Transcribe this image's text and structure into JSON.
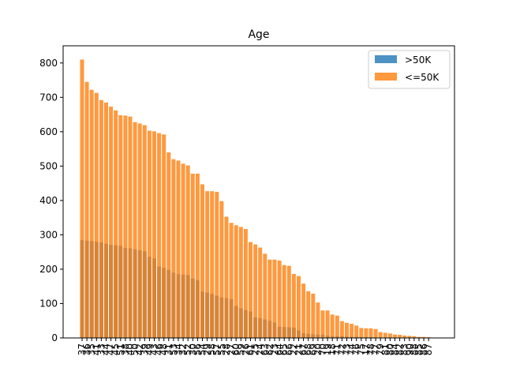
{
  "chart_data": {
    "type": "bar",
    "title": "Age",
    "xlabel": "",
    "ylabel": "",
    "ylim": [
      0,
      850
    ],
    "yticks": [
      0,
      100,
      200,
      300,
      400,
      500,
      600,
      700,
      800
    ],
    "legend_position": "top-right",
    "grid": false,
    "categories": [
      "37",
      "36",
      "35",
      "41",
      "33",
      "44",
      "47",
      "45",
      "51",
      "38",
      "40",
      "50",
      "42",
      "39",
      "49",
      "43",
      "46",
      "48",
      "31",
      "53",
      "34",
      "32",
      "52",
      "30",
      "56",
      "54",
      "29",
      "58",
      "57",
      "55",
      "28",
      "27",
      "60",
      "59",
      "26",
      "61",
      "25",
      "24",
      "63",
      "62",
      "23",
      "64",
      "65",
      "66",
      "22",
      "21",
      "67",
      "68",
      "69",
      "20",
      "70",
      "19",
      "18",
      "71",
      "72",
      "73",
      "74",
      "76",
      "75",
      "17",
      "78",
      "77",
      "79",
      "81",
      "80",
      "84",
      "82",
      "83",
      "90",
      "88",
      "85",
      "86",
      "87"
    ],
    "series": [
      {
        "name": ">50K",
        "color": "#1f77b4",
        "values": [
          285,
          283,
          282,
          280,
          278,
          274,
          271,
          270,
          268,
          262,
          261,
          258,
          255,
          252,
          236,
          232,
          208,
          204,
          198,
          190,
          186,
          184,
          183,
          173,
          168,
          135,
          132,
          128,
          123,
          118,
          116,
          113,
          93,
          86,
          81,
          77,
          60,
          58,
          54,
          50,
          45,
          33,
          32,
          31,
          30,
          22,
          14,
          12,
          11,
          10,
          10,
          7,
          5,
          5,
          5,
          4,
          3,
          3,
          2,
          2,
          2,
          1,
          1,
          1,
          1,
          1,
          1,
          0,
          0,
          0,
          0,
          0,
          0
        ]
      },
      {
        "name": "<=50K",
        "color": "#ff7f0e",
        "values": [
          810,
          745,
          722,
          713,
          692,
          685,
          673,
          662,
          648,
          647,
          644,
          628,
          624,
          619,
          603,
          601,
          596,
          592,
          540,
          520,
          516,
          507,
          502,
          478,
          478,
          447,
          427,
          427,
          425,
          398,
          353,
          335,
          328,
          323,
          317,
          279,
          272,
          263,
          245,
          228,
          228,
          225,
          212,
          210,
          186,
          180,
          158,
          136,
          129,
          103,
          80,
          80,
          68,
          65,
          49,
          44,
          41,
          36,
          29,
          28,
          28,
          26,
          17,
          15,
          13,
          10,
          9,
          7,
          6,
          5,
          3,
          3,
          2
        ]
      }
    ]
  }
}
